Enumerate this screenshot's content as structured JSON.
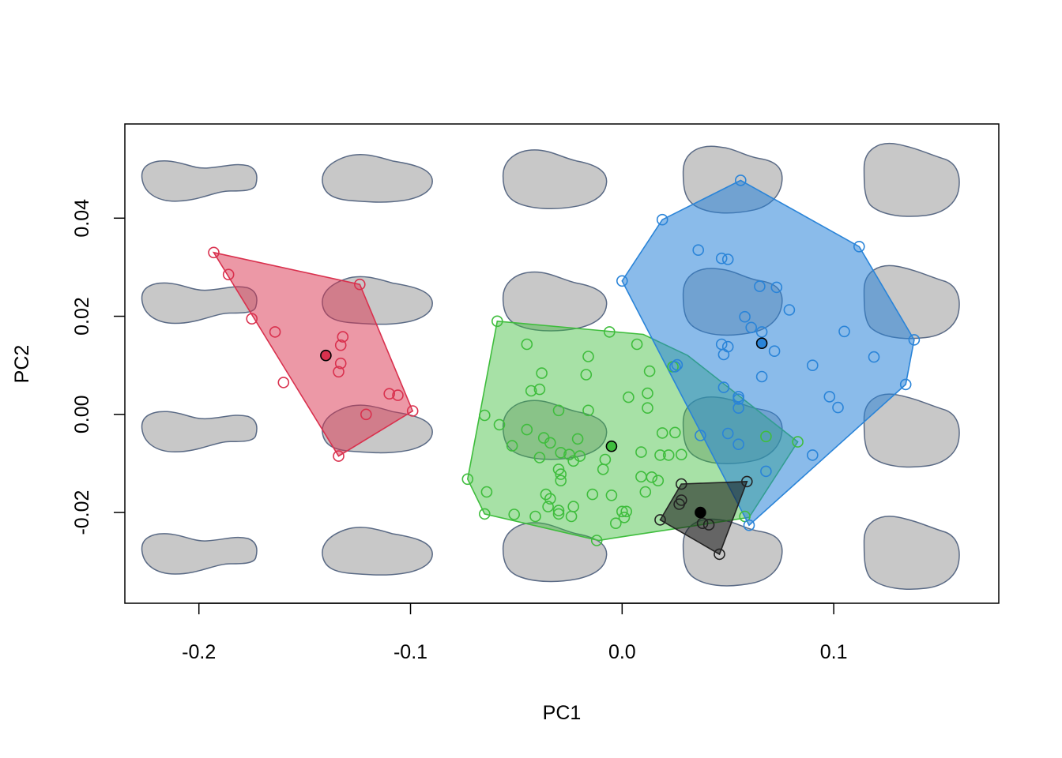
{
  "chart_data": {
    "type": "scatter",
    "title": "",
    "xlabel": "PC1",
    "ylabel": "PC2",
    "xlim": [
      -0.235,
      0.178
    ],
    "ylim": [
      -0.0385,
      0.0592
    ],
    "x_ticks": [
      -0.2,
      -0.1,
      0.0,
      0.1
    ],
    "x_tick_labels": [
      "-0.2",
      "-0.1",
      "0.0",
      "0.1"
    ],
    "y_ticks": [
      -0.02,
      0.0,
      0.02,
      0.04
    ],
    "y_tick_labels": [
      "-0.02",
      "0.00",
      "0.02",
      "0.04"
    ],
    "grid": false,
    "legend": "none",
    "background_shapes": {
      "description_key": "morphospace outline shapes",
      "fill": "#c8c8c8",
      "stroke": "#5a6a85",
      "columns_x": [
        -0.2,
        -0.116,
        -0.032,
        0.052,
        0.136
      ],
      "rows_y": [
        0.0478,
        0.0229,
        -0.0033,
        -0.0282
      ]
    },
    "series": [
      {
        "color": "#d9314e",
        "fill": "rgba(217,49,78,0.5)",
        "hull": [
          [
            -0.193,
            0.033
          ],
          [
            -0.124,
            0.0265
          ],
          [
            -0.099,
            0.0007
          ],
          [
            -0.134,
            -0.0085
          ]
        ],
        "points": [
          [
            -0.193,
            0.033
          ],
          [
            -0.186,
            0.0285
          ],
          [
            -0.175,
            0.0195
          ],
          [
            -0.164,
            0.0168
          ],
          [
            -0.16,
            0.0065
          ],
          [
            -0.124,
            0.0265
          ],
          [
            -0.132,
            0.0158
          ],
          [
            -0.133,
            0.0141
          ],
          [
            -0.133,
            0.0104
          ],
          [
            -0.134,
            0.0087
          ],
          [
            -0.11,
            0.0042
          ],
          [
            -0.106,
            0.0039
          ],
          [
            -0.099,
            0.0007
          ],
          [
            -0.121,
            0.0
          ],
          [
            -0.134,
            -0.0085
          ]
        ],
        "mean": [
          -0.14,
          0.012
        ]
      },
      {
        "color": "#3fbd3d",
        "fill": "rgba(63,189,61,0.46)",
        "hull": [
          [
            -0.059,
            0.019
          ],
          [
            0.01,
            0.0163
          ],
          [
            0.031,
            0.012
          ],
          [
            0.083,
            -0.0056
          ],
          [
            0.06,
            -0.021
          ],
          [
            -0.004,
            -0.0252
          ],
          [
            -0.011,
            -0.0257
          ],
          [
            -0.065,
            -0.0203
          ],
          [
            -0.073,
            -0.0132
          ]
        ],
        "points": [
          [
            -0.059,
            0.019
          ],
          [
            -0.045,
            0.0143
          ],
          [
            -0.006,
            0.0168
          ],
          [
            0.007,
            0.0143
          ],
          [
            -0.016,
            0.0118
          ],
          [
            -0.038,
            0.0084
          ],
          [
            -0.017,
            0.0081
          ],
          [
            0.013,
            0.0088
          ],
          [
            0.024,
            0.0097
          ],
          [
            -0.043,
            0.0048
          ],
          [
            -0.039,
            0.0051
          ],
          [
            0.003,
            0.0035
          ],
          [
            0.012,
            0.0043
          ],
          [
            0.012,
            0.0013
          ],
          [
            -0.03,
            0.0008
          ],
          [
            -0.016,
            0.0008
          ],
          [
            -0.065,
            -0.0002
          ],
          [
            -0.058,
            -0.0021
          ],
          [
            -0.045,
            -0.0031
          ],
          [
            -0.037,
            -0.0048
          ],
          [
            -0.034,
            -0.0058
          ],
          [
            -0.021,
            -0.005
          ],
          [
            0.019,
            -0.0038
          ],
          [
            0.025,
            -0.0037
          ],
          [
            0.068,
            -0.0045
          ],
          [
            0.083,
            -0.0056
          ],
          [
            -0.052,
            -0.0064
          ],
          [
            -0.039,
            -0.0088
          ],
          [
            -0.029,
            -0.0078
          ],
          [
            -0.025,
            -0.0082
          ],
          [
            -0.023,
            -0.0095
          ],
          [
            -0.02,
            -0.0085
          ],
          [
            -0.008,
            -0.0092
          ],
          [
            0.009,
            -0.0077
          ],
          [
            0.018,
            -0.0083
          ],
          [
            0.022,
            -0.0083
          ],
          [
            0.028,
            -0.0082
          ],
          [
            -0.03,
            -0.0112
          ],
          [
            -0.029,
            -0.0122
          ],
          [
            -0.009,
            -0.0112
          ],
          [
            -0.073,
            -0.0132
          ],
          [
            -0.029,
            -0.0135
          ],
          [
            0.009,
            -0.0127
          ],
          [
            0.014,
            -0.0128
          ],
          [
            0.017,
            -0.0135
          ],
          [
            -0.064,
            -0.0158
          ],
          [
            -0.036,
            -0.0163
          ],
          [
            -0.034,
            -0.0172
          ],
          [
            0.011,
            -0.0158
          ],
          [
            -0.035,
            -0.0188
          ],
          [
            -0.023,
            -0.0188
          ],
          [
            -0.03,
            -0.0196
          ],
          [
            -0.014,
            -0.0163
          ],
          [
            -0.005,
            -0.0165
          ],
          [
            -0.065,
            -0.0203
          ],
          [
            -0.051,
            -0.0204
          ],
          [
            -0.041,
            -0.0208
          ],
          [
            -0.03,
            -0.0203
          ],
          [
            -0.024,
            -0.0208
          ],
          [
            0.0,
            -0.0198
          ],
          [
            0.002,
            -0.0198
          ],
          [
            0.001,
            -0.021
          ],
          [
            -0.003,
            -0.0222
          ],
          [
            0.058,
            -0.0208
          ],
          [
            -0.012,
            -0.0257
          ]
        ],
        "mean": [
          -0.005,
          -0.0065
        ]
      },
      {
        "color": "#2a84d8",
        "fill": "rgba(42,132,216,0.55)",
        "hull": [
          [
            0.056,
            0.0477
          ],
          [
            0.112,
            0.0342
          ],
          [
            0.138,
            0.0152
          ],
          [
            0.134,
            0.0061
          ],
          [
            0.06,
            -0.0226
          ],
          [
            0.0,
            0.0272
          ],
          [
            0.019,
            0.0397
          ]
        ],
        "points": [
          [
            0.056,
            0.0477
          ],
          [
            0.019,
            0.0397
          ],
          [
            0.112,
            0.0342
          ],
          [
            0.036,
            0.0335
          ],
          [
            0.047,
            0.0318
          ],
          [
            0.05,
            0.0316
          ],
          [
            0.0,
            0.0272
          ],
          [
            0.065,
            0.0261
          ],
          [
            0.073,
            0.0259
          ],
          [
            0.079,
            0.0213
          ],
          [
            0.058,
            0.0199
          ],
          [
            0.061,
            0.0177
          ],
          [
            0.066,
            0.0168
          ],
          [
            0.105,
            0.0169
          ],
          [
            0.138,
            0.0152
          ],
          [
            0.047,
            0.0143
          ],
          [
            0.05,
            0.0138
          ],
          [
            0.072,
            0.0129
          ],
          [
            0.048,
            0.0122
          ],
          [
            0.026,
            0.0101
          ],
          [
            0.025,
            0.0097
          ],
          [
            0.09,
            0.01
          ],
          [
            0.119,
            0.0117
          ],
          [
            0.066,
            0.0077
          ],
          [
            0.134,
            0.0061
          ],
          [
            0.048,
            0.0055
          ],
          [
            0.098,
            0.0036
          ],
          [
            0.055,
            0.0036
          ],
          [
            0.055,
            0.0031
          ],
          [
            0.102,
            0.0014
          ],
          [
            0.055,
            0.0013
          ],
          [
            0.037,
            -0.0043
          ],
          [
            0.05,
            -0.0039
          ],
          [
            0.055,
            -0.0061
          ],
          [
            0.09,
            -0.0083
          ],
          [
            0.068,
            -0.0116
          ],
          [
            0.06,
            -0.0226
          ]
        ],
        "mean": [
          0.066,
          0.0145
        ]
      },
      {
        "color": "#222222",
        "fill": "rgba(20,20,20,0.55)",
        "hull": [
          [
            0.028,
            -0.0142
          ],
          [
            0.059,
            -0.0137
          ],
          [
            0.046,
            -0.0285
          ],
          [
            0.018,
            -0.0215
          ]
        ],
        "points": [
          [
            0.028,
            -0.0142
          ],
          [
            0.059,
            -0.0137
          ],
          [
            0.028,
            -0.0175
          ],
          [
            0.027,
            -0.0183
          ],
          [
            0.018,
            -0.0215
          ],
          [
            0.038,
            -0.0222
          ],
          [
            0.041,
            -0.0225
          ],
          [
            0.046,
            -0.0285
          ]
        ],
        "mean": [
          0.037,
          -0.02
        ]
      }
    ]
  }
}
